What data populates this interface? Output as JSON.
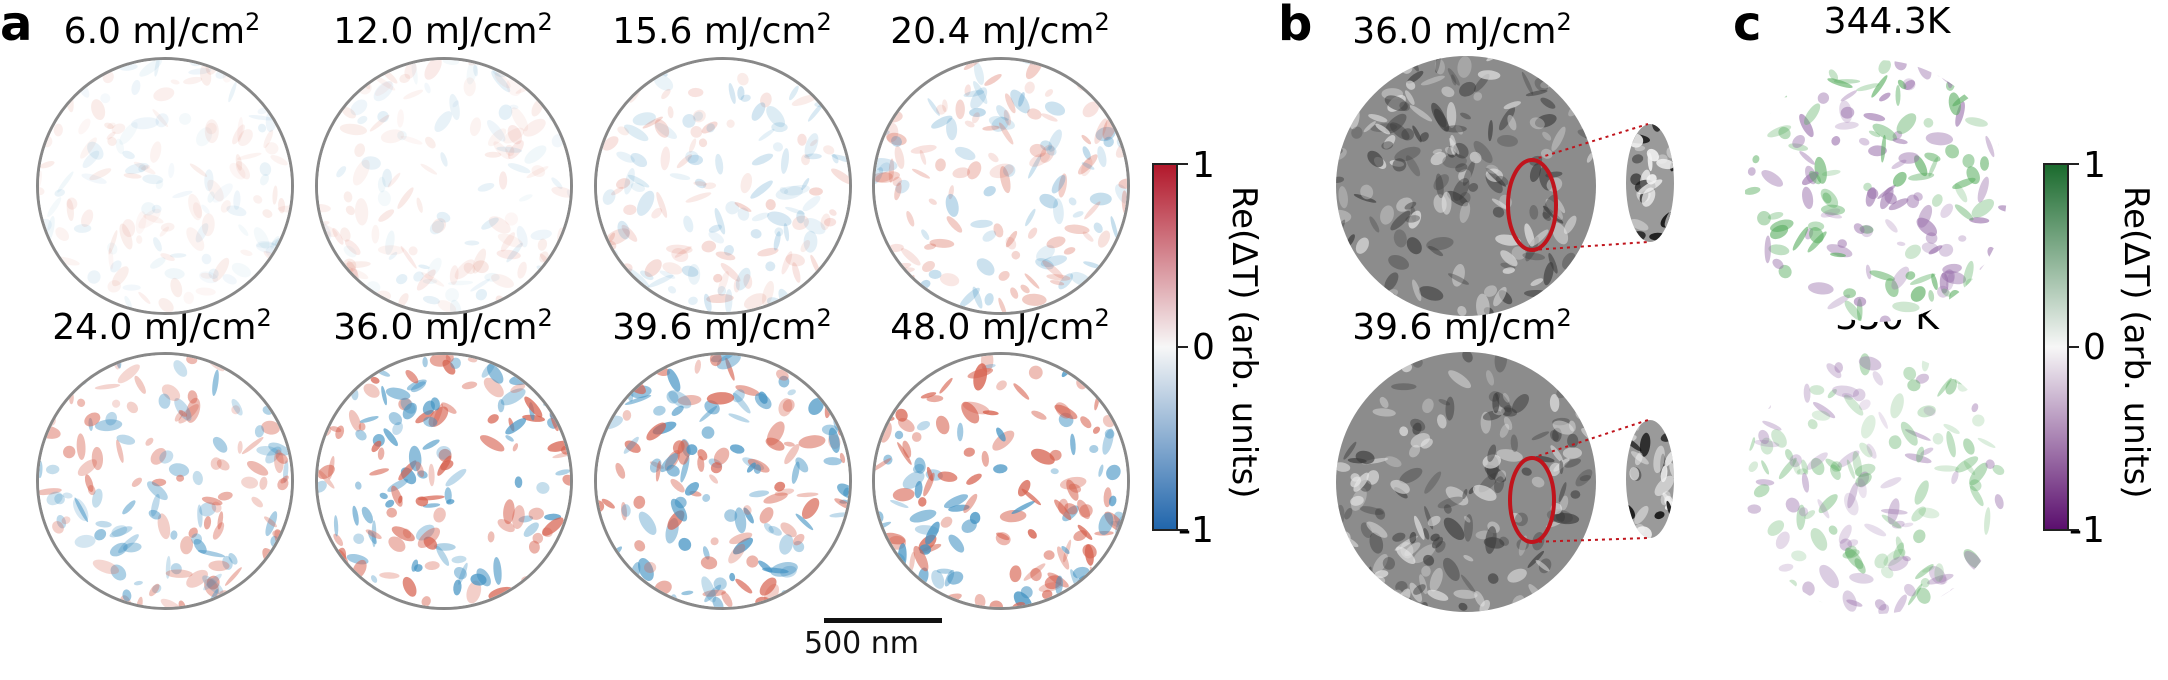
{
  "panel_a": {
    "letter": "a",
    "fluences": [
      {
        "value": "6.0 mJ/cm",
        "exp": "2"
      },
      {
        "value": "12.0 mJ/cm",
        "exp": "2"
      },
      {
        "value": "15.6 mJ/cm",
        "exp": "2"
      },
      {
        "value": "20.4 mJ/cm",
        "exp": "2"
      },
      {
        "value": "24.0 mJ/cm",
        "exp": "2"
      },
      {
        "value": "36.0 mJ/cm",
        "exp": "2"
      },
      {
        "value": "39.6 mJ/cm",
        "exp": "2"
      },
      {
        "value": "48.0 mJ/cm",
        "exp": "2"
      }
    ],
    "scale_bar": "500 nm",
    "colorbar": {
      "label": "Re(ΔT) (arb. units)",
      "max": "1",
      "mid": "0",
      "min": "-1",
      "colors": [
        "#b2182b",
        "#f7f7f7",
        "#2166ac"
      ]
    }
  },
  "panel_b": {
    "letter": "b",
    "fluences": [
      {
        "value": "36.0 mJ/cm",
        "exp": "2"
      },
      {
        "value": "39.6 mJ/cm",
        "exp": "2"
      }
    ],
    "highlight_color": "#c0141c"
  },
  "panel_c": {
    "letter": "c",
    "temps": [
      "344.3K",
      "350 K"
    ],
    "colorbar": {
      "label": "Re(ΔT) (arb. units)",
      "max": "1",
      "mid": "0",
      "min": "-1",
      "colors": [
        "#1b6b2e",
        "#f7f7f7",
        "#5b0f6e"
      ]
    }
  }
}
